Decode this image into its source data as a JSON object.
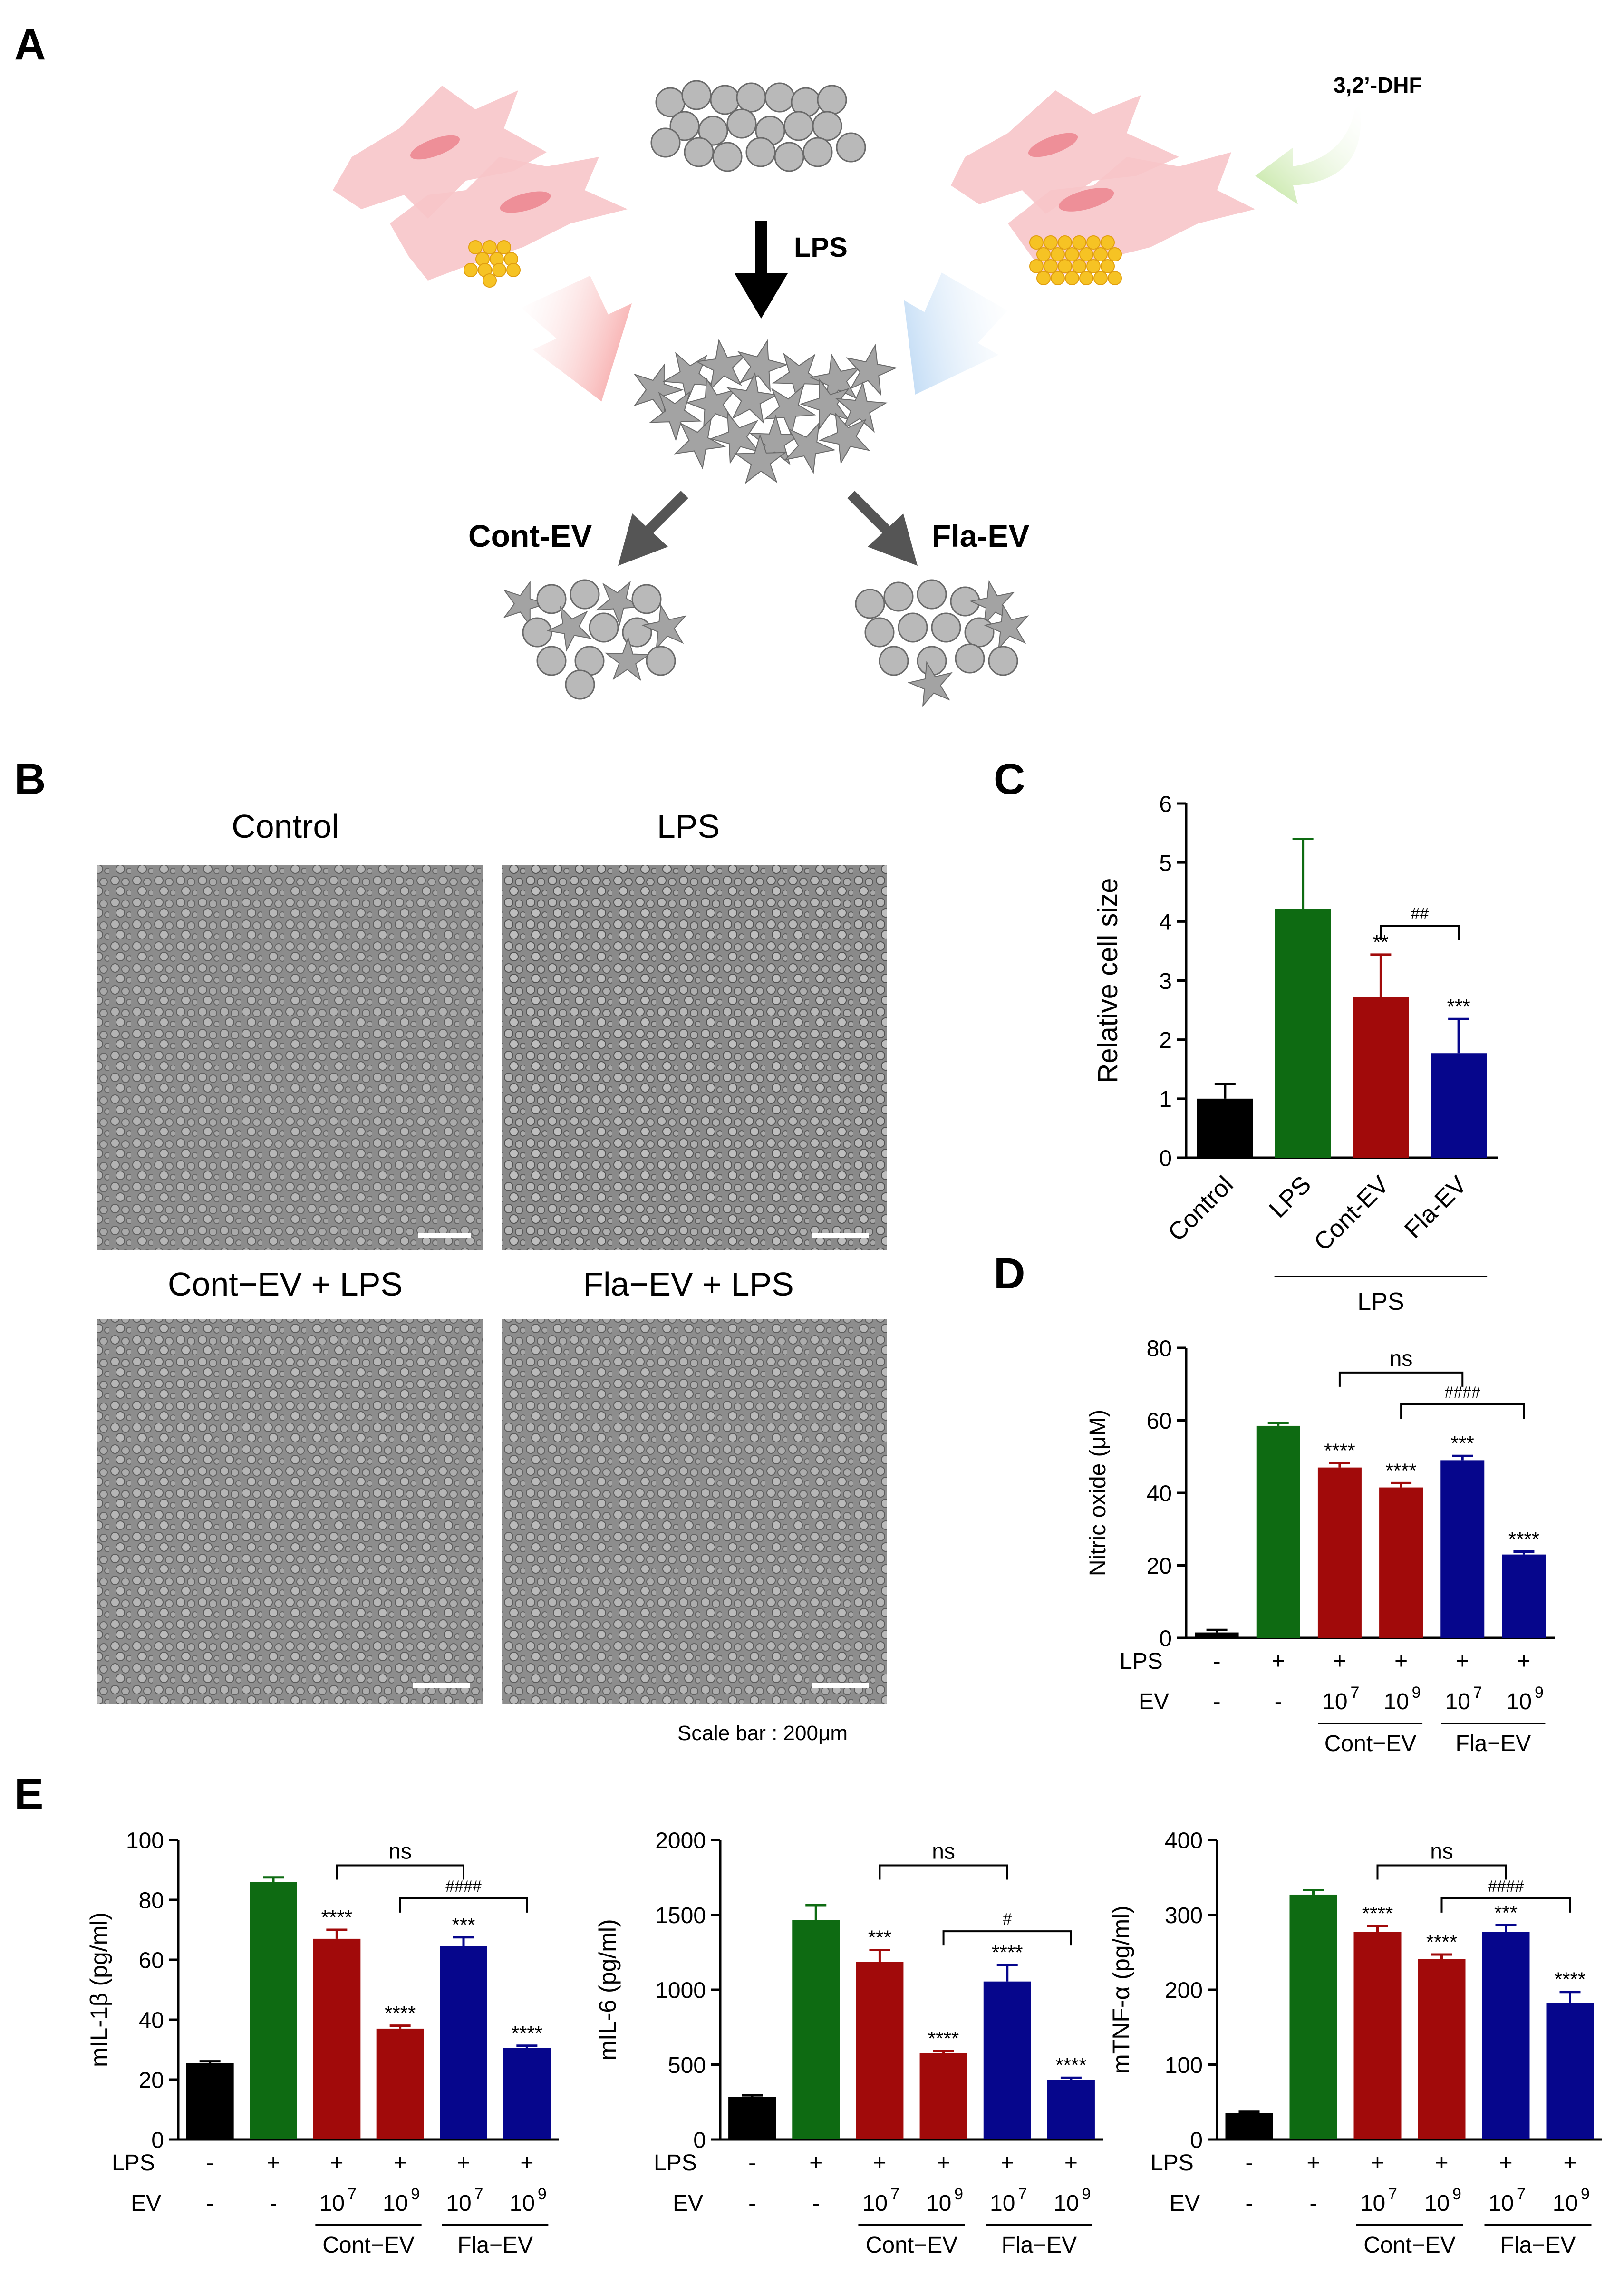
{
  "panel_letters": [
    "A",
    "B",
    "C",
    "D",
    "E"
  ],
  "schematic": {
    "flavonoid_label": "3,2’-DHF",
    "lps_label": "LPS",
    "left_branch_label": "Cont-EV",
    "right_branch_label": "Fla-EV",
    "colors": {
      "fibroblast": "#f7c5c9",
      "nucleus": "#ee8f98",
      "vesicle": "#f6c324",
      "macrophage": "#b9b9b9",
      "red_arrow": "#f48080",
      "blue_arrow": "#aacdf0",
      "green_arrow": "#c8e8a6",
      "black_arrow": "#000000",
      "grey_arrow": "#555555"
    }
  },
  "micrographs": {
    "titles": [
      "Control",
      "LPS",
      "Cont−EV + LPS",
      "Fla−EV + LPS"
    ],
    "scale_note": "Scale bar : 200μm"
  },
  "chart_data": [
    {
      "id": "C",
      "type": "bar",
      "ylabel": "Relative cell size",
      "ylim": [
        0,
        6
      ],
      "yticks": [
        "0",
        "1",
        "2",
        "3",
        "4",
        "5",
        "6"
      ],
      "categories": [
        "Control",
        "LPS",
        "Cont-EV",
        "Fla-EV"
      ],
      "values": [
        1.0,
        4.22,
        2.72,
        1.77
      ],
      "errors": [
        0.25,
        1.18,
        0.72,
        0.58
      ],
      "colors": [
        "#000000",
        "#0e6b12",
        "#a10a0a",
        "#06068c"
      ],
      "significance": [
        "",
        "",
        "**",
        "***"
      ],
      "bracket_labels": [
        "##"
      ],
      "group_label": "LPS"
    },
    {
      "id": "D",
      "type": "bar",
      "ylabel": "Nitric oxide (μM)",
      "ylim": [
        0,
        80
      ],
      "yticks": [
        "0",
        "20",
        "40",
        "60",
        "80"
      ],
      "values": [
        1.5,
        58.5,
        47,
        41.5,
        49,
        23
      ],
      "errors": [
        0.7,
        0.8,
        1.2,
        1.2,
        1.2,
        0.8
      ],
      "colors": [
        "#000000",
        "#0e6b12",
        "#a10a0a",
        "#a10a0a",
        "#06068c",
        "#06068c"
      ],
      "significance": [
        "",
        "",
        "****",
        "****",
        "***",
        "****"
      ],
      "bracket_labels": [
        "ns",
        "####"
      ],
      "row_labels": [
        "LPS",
        "EV"
      ],
      "lps_row": [
        "-",
        "+",
        "+",
        "+",
        "+",
        "+"
      ],
      "ev_row": [
        "-",
        "-",
        "10",
        "10",
        "10",
        "10"
      ],
      "ev_exponents": [
        "",
        "",
        "7",
        "9",
        "7",
        "9"
      ],
      "group_labels": [
        "Cont−EV",
        "Fla−EV"
      ]
    },
    {
      "id": "E1",
      "type": "bar",
      "ylabel": "mIL-1β (pg/ml)",
      "ylim": [
        0,
        100
      ],
      "yticks": [
        "0",
        "20",
        "40",
        "60",
        "80",
        "100"
      ],
      "values": [
        25.5,
        86,
        67,
        37,
        64.5,
        30.5
      ],
      "errors": [
        0.6,
        1.5,
        3,
        1,
        3,
        0.8
      ],
      "colors": [
        "#000000",
        "#0e6b12",
        "#a10a0a",
        "#a10a0a",
        "#06068c",
        "#06068c"
      ],
      "significance": [
        "",
        "",
        "****",
        "****",
        "***",
        "****"
      ],
      "bracket_labels": [
        "ns",
        "####"
      ],
      "row_labels": [
        "LPS",
        "EV"
      ],
      "lps_row": [
        "-",
        "+",
        "+",
        "+",
        "+",
        "+"
      ],
      "ev_row": [
        "-",
        "-",
        "10",
        "10",
        "10",
        "10"
      ],
      "ev_exponents": [
        "",
        "",
        "7",
        "9",
        "7",
        "9"
      ],
      "group_labels": [
        "Cont−EV",
        "Fla−EV"
      ]
    },
    {
      "id": "E2",
      "type": "bar",
      "ylabel": "mIL-6 (pg/ml)",
      "ylim": [
        0,
        2000
      ],
      "yticks": [
        "0",
        "500",
        "1000",
        "1500",
        "2000"
      ],
      "values": [
        285,
        1465,
        1185,
        575,
        1055,
        400
      ],
      "errors": [
        10,
        100,
        80,
        15,
        110,
        12
      ],
      "colors": [
        "#000000",
        "#0e6b12",
        "#a10a0a",
        "#a10a0a",
        "#06068c",
        "#06068c"
      ],
      "significance": [
        "",
        "",
        "***",
        "****",
        "****",
        "****"
      ],
      "bracket_labels": [
        "ns",
        "#"
      ],
      "row_labels": [
        "LPS",
        "EV"
      ],
      "lps_row": [
        "-",
        "+",
        "+",
        "+",
        "+",
        "+"
      ],
      "ev_row": [
        "-",
        "-",
        "10",
        "10",
        "10",
        "10"
      ],
      "ev_exponents": [
        "",
        "",
        "7",
        "9",
        "7",
        "9"
      ],
      "group_labels": [
        "Cont−EV",
        "Fla−EV"
      ]
    },
    {
      "id": "E3",
      "type": "bar",
      "ylabel": "mTNF-α (pg/ml)",
      "ylim": [
        0,
        400
      ],
      "yticks": [
        "0",
        "100",
        "200",
        "300",
        "400"
      ],
      "values": [
        35,
        327,
        277,
        241,
        277,
        182
      ],
      "errors": [
        2,
        6,
        8,
        6,
        9,
        15
      ],
      "colors": [
        "#000000",
        "#0e6b12",
        "#a10a0a",
        "#a10a0a",
        "#06068c",
        "#06068c"
      ],
      "significance": [
        "",
        "",
        "****",
        "****",
        "***",
        "****"
      ],
      "bracket_labels": [
        "ns",
        "####"
      ],
      "row_labels": [
        "LPS",
        "EV"
      ],
      "lps_row": [
        "-",
        "+",
        "+",
        "+",
        "+",
        "+"
      ],
      "ev_row": [
        "-",
        "-",
        "10",
        "10",
        "10",
        "10"
      ],
      "ev_exponents": [
        "",
        "",
        "7",
        "9",
        "7",
        "9"
      ],
      "group_labels": [
        "Cont−EV",
        "Fla−EV"
      ]
    }
  ]
}
